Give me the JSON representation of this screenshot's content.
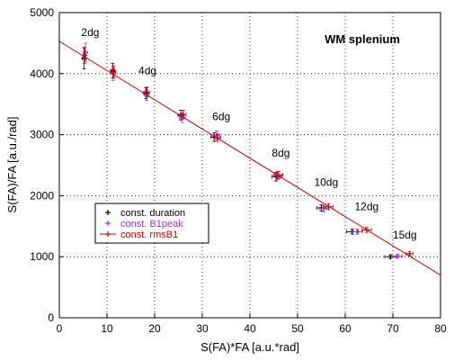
{
  "chart_data": {
    "type": "scatter",
    "title": "WM splenium",
    "xlabel": "S(FA)*FA [a.u.*rad]",
    "ylabel": "S(FA)/FA [a.u./rad]",
    "xlim": [
      0,
      80
    ],
    "ylim": [
      0,
      5000
    ],
    "x_ticks": [
      0,
      10,
      20,
      30,
      40,
      50,
      60,
      70,
      80
    ],
    "y_ticks": [
      0,
      1000,
      2000,
      3000,
      4000,
      5000
    ],
    "grid": "dotted",
    "legend_position": "center-left",
    "series": [
      {
        "name": "const. duration",
        "color": "#000000",
        "marker": "plus",
        "points": [
          {
            "x": 5.2,
            "y": 4250,
            "xerr": 0.4,
            "yerr": 170
          },
          {
            "x": 11.2,
            "y": 4050,
            "xerr": 0.4,
            "yerr": 120
          },
          {
            "x": 18.2,
            "y": 3680,
            "xerr": 0.5,
            "yerr": 90
          },
          {
            "x": 25.5,
            "y": 3320,
            "xerr": 0.6,
            "yerr": 80
          },
          {
            "x": 32.5,
            "y": 2960,
            "xerr": 0.7,
            "yerr": 70
          },
          {
            "x": 45.5,
            "y": 2310,
            "xerr": 0.9,
            "yerr": 70
          },
          {
            "x": 55.0,
            "y": 1800,
            "xerr": 1.0,
            "yerr": 50
          },
          {
            "x": 61.5,
            "y": 1410,
            "xerr": 1.2,
            "yerr": 40
          },
          {
            "x": 69.5,
            "y": 1000,
            "xerr": 1.2,
            "yerr": 30
          }
        ]
      },
      {
        "name": "const. B1peak",
        "color": "#9b30d0",
        "marker": "plus",
        "points": [
          {
            "x": 5.5,
            "y": 4350,
            "xerr": 0.4,
            "yerr": 150
          },
          {
            "x": 11.3,
            "y": 4000,
            "xerr": 0.4,
            "yerr": 110
          },
          {
            "x": 18.3,
            "y": 3650,
            "xerr": 0.5,
            "yerr": 90
          },
          {
            "x": 25.8,
            "y": 3280,
            "xerr": 0.6,
            "yerr": 80
          },
          {
            "x": 33.0,
            "y": 2990,
            "xerr": 0.7,
            "yerr": 70
          },
          {
            "x": 45.8,
            "y": 2330,
            "xerr": 0.9,
            "yerr": 70
          },
          {
            "x": 55.5,
            "y": 1790,
            "xerr": 1.0,
            "yerr": 50
          },
          {
            "x": 62.5,
            "y": 1410,
            "xerr": 1.2,
            "yerr": 40
          },
          {
            "x": 71.0,
            "y": 1010,
            "xerr": 1.0,
            "yerr": 30
          }
        ]
      },
      {
        "name": "const. rmsB1",
        "color": "#cc0000",
        "marker": "plus",
        "points": [
          {
            "x": 5.3,
            "y": 4300,
            "xerr": 0.3,
            "yerr": 130
          },
          {
            "x": 11.4,
            "y": 4030,
            "xerr": 0.4,
            "yerr": 100
          },
          {
            "x": 18.4,
            "y": 3700,
            "xerr": 0.5,
            "yerr": 80
          },
          {
            "x": 26.0,
            "y": 3330,
            "xerr": 0.6,
            "yerr": 70
          },
          {
            "x": 33.2,
            "y": 2950,
            "xerr": 0.7,
            "yerr": 60
          },
          {
            "x": 46.0,
            "y": 2340,
            "xerr": 0.9,
            "yerr": 60
          },
          {
            "x": 56.5,
            "y": 1820,
            "xerr": 1.0,
            "yerr": 50
          },
          {
            "x": 64.5,
            "y": 1440,
            "xerr": 1.0,
            "yerr": 40
          },
          {
            "x": 73.5,
            "y": 1050,
            "xerr": 0.8,
            "yerr": 30
          }
        ]
      }
    ],
    "fit_line": {
      "color": "#cc0000",
      "x0": 0,
      "y0": 4530,
      "x1": 80,
      "y1": 700
    },
    "annotations": [
      {
        "text": "2dg",
        "x": 6.5,
        "y": 4620
      },
      {
        "text": "4dg",
        "x": 18.5,
        "y": 3990
      },
      {
        "text": "6dg",
        "x": 34.0,
        "y": 3240
      },
      {
        "text": "8dg",
        "x": 46.5,
        "y": 2640
      },
      {
        "text": "10dg",
        "x": 56.0,
        "y": 2160
      },
      {
        "text": "12dg",
        "x": 64.5,
        "y": 1760
      },
      {
        "text": "15dg",
        "x": 72.5,
        "y": 1300
      }
    ]
  }
}
